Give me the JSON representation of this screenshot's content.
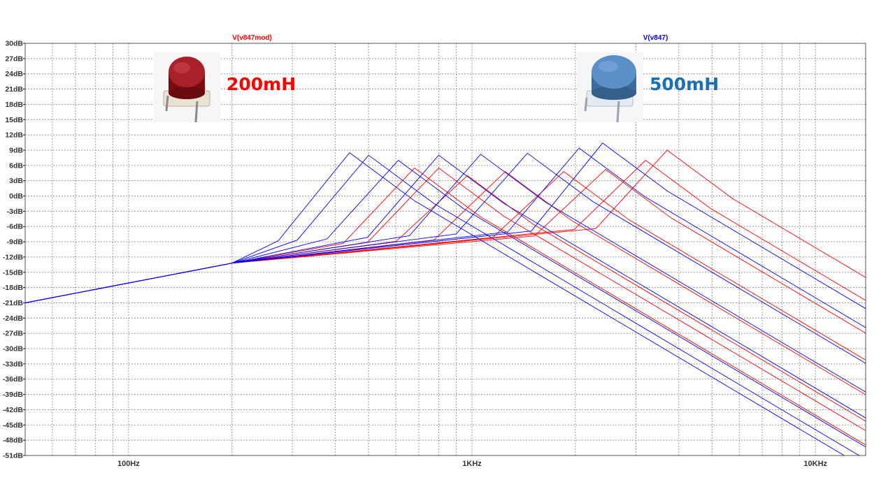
{
  "chart_data": {
    "type": "line",
    "x_scale": "log",
    "xlim": [
      50,
      14000
    ],
    "ylim": [
      -51,
      30
    ],
    "grid": true,
    "y_ticks": [
      "30dB",
      "27dB",
      "24dB",
      "21dB",
      "18dB",
      "15dB",
      "12dB",
      "9dB",
      "6dB",
      "3dB",
      "0dB",
      "-3dB",
      "-6dB",
      "-9dB",
      "-12dB",
      "-15dB",
      "-18dB",
      "-21dB",
      "-24dB",
      "-27dB",
      "-30dB",
      "-33dB",
      "-36dB",
      "-39dB",
      "-42dB",
      "-45dB",
      "-48dB",
      "-51dB"
    ],
    "x_ticks": [
      {
        "value": 100,
        "label": "100Hz"
      },
      {
        "value": 1000,
        "label": "1KHz"
      },
      {
        "value": 10000,
        "label": "10KHz"
      }
    ],
    "series": [
      {
        "name": "V(v847mod)",
        "color": "#ff0000",
        "label_pos": 0.27,
        "curves": [
          {
            "fp": 680,
            "gp": 5.5
          },
          {
            "fp": 800,
            "gp": 5.5
          },
          {
            "fp": 970,
            "gp": 4.0
          },
          {
            "fp": 1250,
            "gp": 4.8
          },
          {
            "fp": 1850,
            "gp": 4.8
          },
          {
            "fp": 2450,
            "gp": 5.2
          },
          {
            "fp": 3200,
            "gp": 7.0
          },
          {
            "fp": 3700,
            "gp": 9.0
          }
        ]
      },
      {
        "name": "V(v847)",
        "color": "#0000ff",
        "label_pos": 0.75,
        "curves": [
          {
            "fp": 440,
            "gp": 8.5
          },
          {
            "fp": 500,
            "gp": 8.0
          },
          {
            "fp": 610,
            "gp": 7.0
          },
          {
            "fp": 800,
            "gp": 8.0
          },
          {
            "fp": 1060,
            "gp": 8.2
          },
          {
            "fp": 1450,
            "gp": 8.4
          },
          {
            "fp": 2050,
            "gp": 9.4
          },
          {
            "fp": 2400,
            "gp": 10.4
          }
        ]
      }
    ]
  },
  "annotations": {
    "left_label": "200mH",
    "left_color": "#ff0000",
    "right_label": "500mH",
    "right_color": "#1a6fb5",
    "left_image_icon": "red-inductor-photo",
    "right_image_icon": "blue-inductor-photo"
  }
}
